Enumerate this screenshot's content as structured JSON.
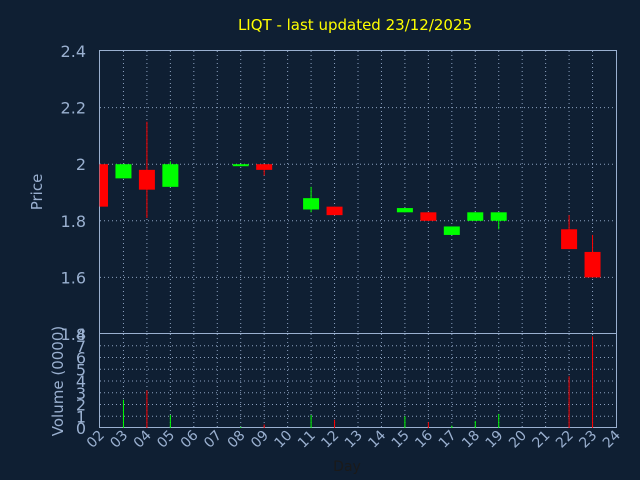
{
  "chart_data": {
    "type": "candlestick",
    "title": "LIQT - last updated 23/12/2025",
    "xlabel": "Day",
    "ylabel_price": "Price",
    "ylabel_volume": "Volume (0000)",
    "x_ticks": [
      "02",
      "03",
      "04",
      "05",
      "06",
      "07",
      "08",
      "09",
      "10",
      "11",
      "12",
      "13",
      "14",
      "15",
      "16",
      "17",
      "18",
      "19",
      "20",
      "21",
      "22",
      "23",
      "24"
    ],
    "price_ylim": [
      1.4,
      2.4
    ],
    "price_ticks": [
      "1.4",
      "1.6",
      "1.8",
      "2",
      "2.2",
      "2.4"
    ],
    "volume_ylim": [
      0,
      8
    ],
    "volume_ticks": [
      "0",
      "1",
      "2",
      "3",
      "4",
      "5",
      "6",
      "7",
      "8"
    ],
    "candles": [
      {
        "day": "02",
        "open": 2.0,
        "close": 1.85,
        "high": 2.0,
        "low": 1.85,
        "volume": 0.0
      },
      {
        "day": "03",
        "open": 1.95,
        "close": 2.0,
        "high": 2.0,
        "low": 1.95,
        "volume": 2.4
      },
      {
        "day": "04",
        "open": 1.98,
        "close": 1.91,
        "high": 2.15,
        "low": 1.81,
        "volume": 3.2
      },
      {
        "day": "05",
        "open": 1.92,
        "close": 2.0,
        "high": 2.01,
        "low": 1.92,
        "volume": 1.1
      },
      {
        "day": "08",
        "open": 1.995,
        "close": 2.0,
        "high": 2.0,
        "low": 1.995,
        "volume": 0.1
      },
      {
        "day": "09",
        "open": 2.0,
        "close": 1.98,
        "high": 2.0,
        "low": 1.96,
        "volume": 0.3
      },
      {
        "day": "11",
        "open": 1.84,
        "close": 1.88,
        "high": 1.92,
        "low": 1.83,
        "volume": 1.1
      },
      {
        "day": "12",
        "open": 1.85,
        "close": 1.82,
        "high": 1.85,
        "low": 1.82,
        "volume": 0.7
      },
      {
        "day": "15",
        "open": 1.83,
        "close": 1.845,
        "high": 1.845,
        "low": 1.83,
        "volume": 1.0
      },
      {
        "day": "16",
        "open": 1.83,
        "close": 1.8,
        "high": 1.83,
        "low": 1.8,
        "volume": 0.5
      },
      {
        "day": "17",
        "open": 1.75,
        "close": 1.78,
        "high": 1.78,
        "low": 1.75,
        "volume": 0.2
      },
      {
        "day": "18",
        "open": 1.8,
        "close": 1.83,
        "high": 1.83,
        "low": 1.8,
        "volume": 0.6
      },
      {
        "day": "19",
        "open": 1.8,
        "close": 1.83,
        "high": 1.83,
        "low": 1.77,
        "volume": 1.2
      },
      {
        "day": "22",
        "open": 1.77,
        "close": 1.7,
        "high": 1.82,
        "low": 1.7,
        "volume": 4.4
      },
      {
        "day": "23",
        "open": 1.69,
        "close": 1.6,
        "high": 1.75,
        "low": 1.6,
        "volume": 7.8
      }
    ],
    "colors": {
      "up": "#00ff00",
      "down": "#ff0000",
      "background": "#0f1f33",
      "axis": "#9ab0d0",
      "title": "#ffff00"
    },
    "grid": true
  }
}
